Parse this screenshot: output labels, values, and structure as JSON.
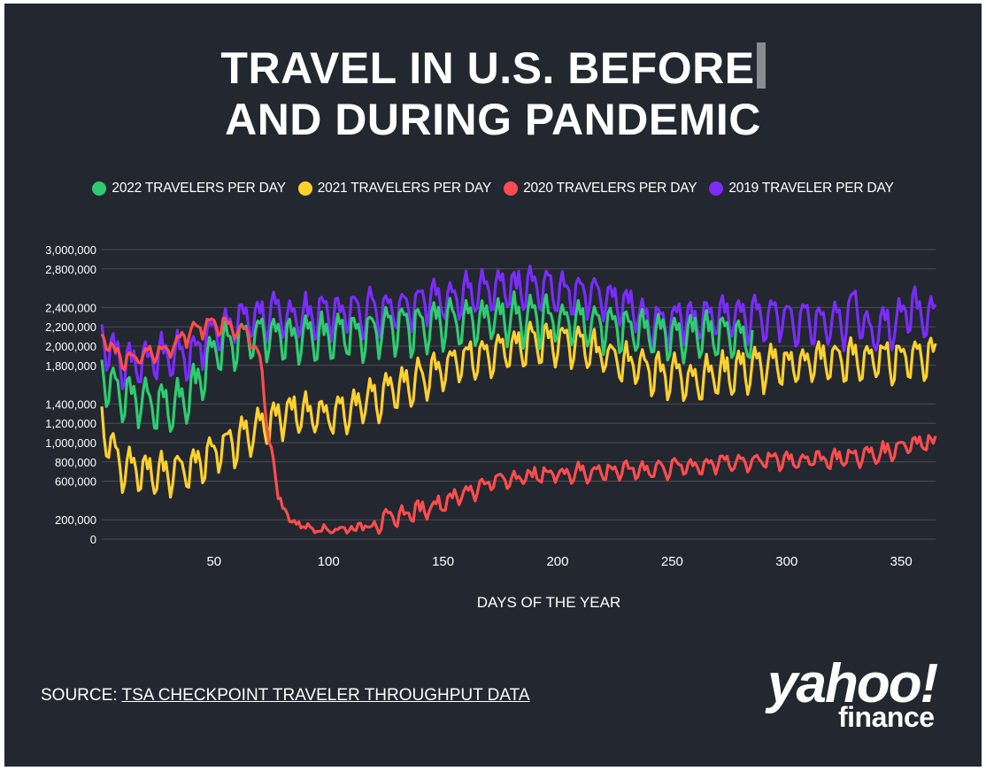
{
  "title_line1": "TRAVEL IN U.S. BEFORE",
  "title_line2": "AND DURING PANDEMIC",
  "source_prefix": "SOURCE:",
  "source_link": "TSA CHECKPOINT TRAVELER THROUGHPUT DATA",
  "logo_top": "yahoo!",
  "logo_bottom": "finance",
  "colors": {
    "background": "#23272f",
    "grid": "#4a4f57",
    "y2022": "#2ecc71",
    "y2021": "#ffd12e",
    "y2020": "#ff4d4f",
    "y2019": "#7b2cff"
  },
  "chart_data": {
    "type": "line",
    "xlabel": "DAYS OF THE YEAR",
    "ylabel": "",
    "xlim": [
      1,
      365
    ],
    "ylim": [
      0,
      3000000
    ],
    "x_ticks": [
      50,
      100,
      150,
      200,
      250,
      300,
      350
    ],
    "y_ticks": [
      0,
      200000,
      600000,
      800000,
      1000000,
      1200000,
      1400000,
      1800000,
      2000000,
      2200000,
      2400000,
      2800000,
      3000000
    ],
    "y_tick_labels": [
      "0",
      "200,000",
      "600,000",
      "800,000",
      "1,000,000",
      "1,200,000",
      "1,400,000",
      "1,800,000",
      "2,000,000",
      "2,200,000",
      "2,400,000",
      "2,800,000",
      "3,000,000"
    ],
    "legend_position": "top",
    "grid": true,
    "series": [
      {
        "name": "2022 TRAVELERS PER DAY",
        "color": "#2ecc71",
        "x_end": 285,
        "knots": [
          [
            1,
            1700000
          ],
          [
            10,
            1500000
          ],
          [
            20,
            1400000
          ],
          [
            30,
            1350000
          ],
          [
            40,
            1500000
          ],
          [
            50,
            1950000
          ],
          [
            60,
            2050000
          ],
          [
            70,
            2100000
          ],
          [
            80,
            2100000
          ],
          [
            90,
            2050000
          ],
          [
            100,
            2100000
          ],
          [
            120,
            2150000
          ],
          [
            140,
            2200000
          ],
          [
            160,
            2250000
          ],
          [
            180,
            2300000
          ],
          [
            200,
            2250000
          ],
          [
            220,
            2200000
          ],
          [
            240,
            2150000
          ],
          [
            260,
            2100000
          ],
          [
            285,
            2100000
          ]
        ],
        "amp": 250000,
        "noise": 60000
      },
      {
        "name": "2021 TRAVELERS PER DAY",
        "color": "#ffd12e",
        "x_end": 365,
        "knots": [
          [
            1,
            1200000
          ],
          [
            10,
            750000
          ],
          [
            20,
            680000
          ],
          [
            30,
            680000
          ],
          [
            40,
            750000
          ],
          [
            50,
            900000
          ],
          [
            60,
            1000000
          ],
          [
            70,
            1150000
          ],
          [
            80,
            1300000
          ],
          [
            90,
            1300000
          ],
          [
            100,
            1300000
          ],
          [
            110,
            1350000
          ],
          [
            120,
            1450000
          ],
          [
            140,
            1650000
          ],
          [
            160,
            1850000
          ],
          [
            180,
            2000000
          ],
          [
            200,
            2050000
          ],
          [
            220,
            1900000
          ],
          [
            240,
            1750000
          ],
          [
            260,
            1650000
          ],
          [
            280,
            1750000
          ],
          [
            300,
            1800000
          ],
          [
            320,
            1850000
          ],
          [
            340,
            1850000
          ],
          [
            365,
            1900000
          ]
        ],
        "amp": 220000,
        "noise": 60000
      },
      {
        "name": "2020 TRAVELERS PER DAY",
        "color": "#ff4d4f",
        "x_end": 365,
        "knots": [
          [
            1,
            2100000
          ],
          [
            10,
            1850000
          ],
          [
            20,
            1900000
          ],
          [
            30,
            1950000
          ],
          [
            40,
            2150000
          ],
          [
            50,
            2250000
          ],
          [
            60,
            2150000
          ],
          [
            66,
            2100000
          ],
          [
            70,
            1850000
          ],
          [
            74,
            1100000
          ],
          [
            78,
            450000
          ],
          [
            83,
            200000
          ],
          [
            90,
            130000
          ],
          [
            100,
            100000
          ],
          [
            110,
            110000
          ],
          [
            120,
            160000
          ],
          [
            130,
            230000
          ],
          [
            140,
            300000
          ],
          [
            150,
            380000
          ],
          [
            160,
            480000
          ],
          [
            170,
            580000
          ],
          [
            180,
            630000
          ],
          [
            200,
            680000
          ],
          [
            220,
            700000
          ],
          [
            240,
            720000
          ],
          [
            260,
            760000
          ],
          [
            280,
            800000
          ],
          [
            300,
            820000
          ],
          [
            320,
            830000
          ],
          [
            340,
            880000
          ],
          [
            355,
            1000000
          ],
          [
            365,
            1000000
          ]
        ],
        "amp": 90000,
        "noise": 40000
      },
      {
        "name": "2019 TRAVELER PER DAY",
        "color": "#7b2cff",
        "x_end": 365,
        "knots": [
          [
            1,
            2100000
          ],
          [
            10,
            1800000
          ],
          [
            20,
            1850000
          ],
          [
            30,
            1900000
          ],
          [
            40,
            1900000
          ],
          [
            50,
            2150000
          ],
          [
            60,
            2250000
          ],
          [
            70,
            2300000
          ],
          [
            90,
            2300000
          ],
          [
            110,
            2350000
          ],
          [
            130,
            2400000
          ],
          [
            150,
            2500000
          ],
          [
            170,
            2550000
          ],
          [
            190,
            2600000
          ],
          [
            210,
            2550000
          ],
          [
            230,
            2450000
          ],
          [
            240,
            2250000
          ],
          [
            250,
            2250000
          ],
          [
            270,
            2300000
          ],
          [
            290,
            2300000
          ],
          [
            310,
            2250000
          ],
          [
            325,
            2250000
          ],
          [
            330,
            2500000
          ],
          [
            335,
            2100000
          ],
          [
            345,
            2200000
          ],
          [
            355,
            2400000
          ],
          [
            365,
            2300000
          ]
        ],
        "amp": 230000,
        "noise": 70000
      }
    ]
  }
}
